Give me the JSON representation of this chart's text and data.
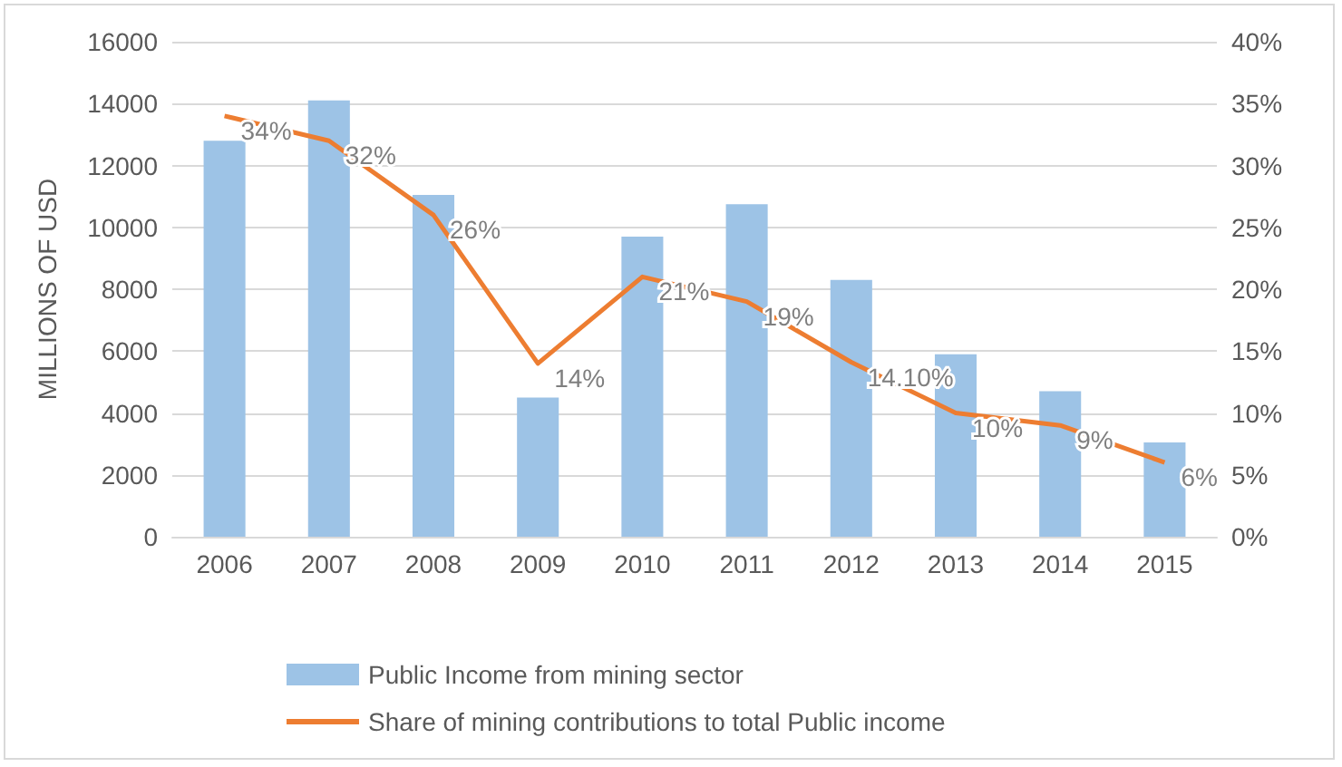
{
  "chart_data": {
    "type": "bar",
    "ylabel": "MILLIONS OF USD",
    "categories": [
      "2006",
      "2007",
      "2008",
      "2009",
      "2010",
      "2011",
      "2012",
      "2013",
      "2014",
      "2015"
    ],
    "series": [
      {
        "name": "Public Income from mining sector",
        "color": "#9dc3e6",
        "values": [
          12800,
          14100,
          11050,
          4500,
          9700,
          10750,
          8300,
          5900,
          4700,
          3050
        ]
      },
      {
        "name": "Share of mining contributions to total Public income",
        "type": "line",
        "axis": "y2",
        "color": "#ed7d31",
        "values": [
          34,
          32,
          26,
          14,
          21,
          19,
          14.1,
          10,
          9,
          6
        ],
        "value_labels": [
          "34%",
          "32%",
          "26%",
          "14%",
          "21%",
          "19%",
          "14.10%",
          "10%",
          "9%",
          "6%"
        ]
      }
    ],
    "ylim": [
      0,
      16000
    ],
    "yticks": [
      0,
      2000,
      4000,
      6000,
      8000,
      10000,
      12000,
      14000,
      16000
    ],
    "y2lim": [
      0,
      40
    ],
    "y2ticks": [
      {
        "value": 0,
        "label": "0%"
      },
      {
        "value": 5,
        "label": "5%"
      },
      {
        "value": 10,
        "label": "10%"
      },
      {
        "value": 15,
        "label": "15%"
      },
      {
        "value": 20,
        "label": "20%"
      },
      {
        "value": 25,
        "label": "25%"
      },
      {
        "value": 30,
        "label": "30%"
      },
      {
        "value": 35,
        "label": "35%"
      },
      {
        "value": 40,
        "label": "40%"
      }
    ],
    "grid": "y",
    "legend": "bottom",
    "marker": "none"
  }
}
